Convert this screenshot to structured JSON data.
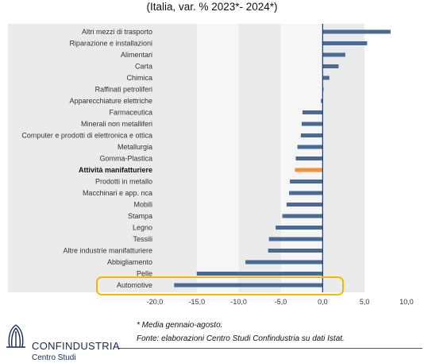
{
  "subtitle": "(Italia, var. % 2023*- 2024*)",
  "chart_data": {
    "type": "bar",
    "orientation": "horizontal",
    "title": "",
    "xlabel": "",
    "ylabel": "",
    "xlim": [
      -20,
      10
    ],
    "xticks": [
      "-20,0",
      "-15,0",
      "-10,0",
      "-5,0",
      "0,0",
      "5,0",
      "10,0"
    ],
    "grid_bands": true,
    "highlighted_category": "Attività manifatturiere",
    "circled_category": "Automotive",
    "colors": {
      "bar": "#4a6a96",
      "highlight": "#f0923a",
      "band": "#ebebeb",
      "circle": "#f5b800"
    },
    "categories": [
      "Altri mezzi di trasporto",
      "Riparazione e installazioni",
      "Alimentari",
      "Carta",
      "Chimica",
      "Raffinati petroliferi",
      "Apparecchiature elettriche",
      "Farmaceutica",
      "Minerali non metalliferi",
      "Computer e prodotti di elettronica e ottica",
      "Metallurgia",
      "Gomma-Plastica",
      "Attività manifatturiere",
      "Prodotti in metallo",
      "Macchinari e app. nca",
      "Mobili",
      "Stampa",
      "Legno",
      "Tessili",
      "Altre industrie manifatturiere",
      "Abbigliamento",
      "Pelle",
      "Automotive"
    ],
    "values": [
      8.1,
      5.3,
      2.7,
      1.9,
      0.8,
      0.1,
      -0.2,
      -2.4,
      -2.5,
      -2.6,
      -3.0,
      -3.2,
      -3.3,
      -3.9,
      -4.0,
      -4.3,
      -4.8,
      -5.6,
      -6.4,
      -6.5,
      -9.2,
      -15.0,
      -17.7
    ]
  },
  "footer": {
    "note": "* Media gennaio-agosto.",
    "source": "Fonte: elaborazioni Centro Studi Confindustria su dati Istat."
  },
  "logo": {
    "name": "CONFINDUSTRIA",
    "sub": "Centro Studi"
  }
}
